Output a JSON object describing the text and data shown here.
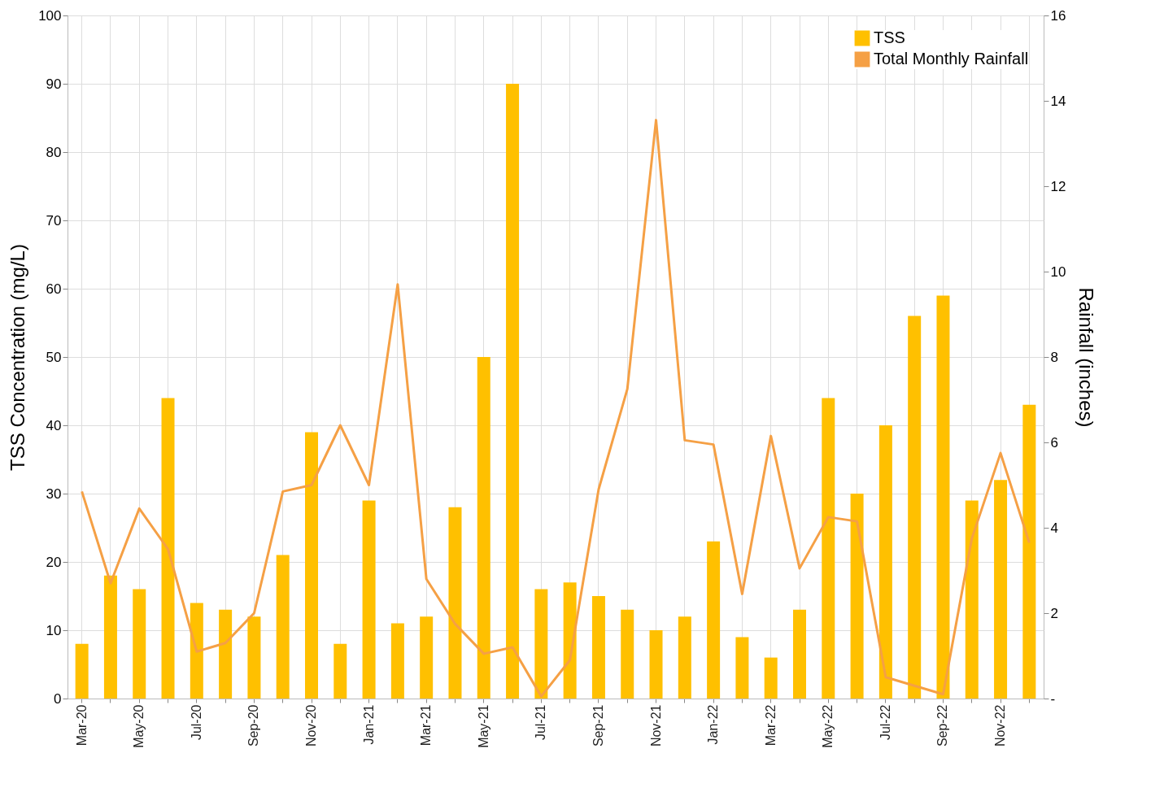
{
  "chart_data": {
    "type": "bar",
    "ylabel": "TSS Concentration   (mg/L)",
    "y2label": "Rainfall (inches)",
    "categories": [
      "Mar-20",
      null,
      "May-20",
      null,
      "Jul-20",
      null,
      "Sep-20",
      null,
      "Nov-20",
      null,
      "Jan-21",
      null,
      "Mar-21",
      null,
      "May-21",
      null,
      "Jul-21",
      null,
      "Sep-21",
      null,
      "Nov-21",
      null,
      "Jan-22",
      null,
      "Mar-22",
      null,
      "May-22",
      null,
      "Jul-22",
      null,
      "Sep-22",
      null,
      "Nov-22",
      null
    ],
    "series": [
      {
        "name": "TSS",
        "color": "#ffc000",
        "values": [
          8,
          18,
          16,
          44,
          14,
          13,
          12,
          21,
          39,
          8,
          29,
          11,
          12,
          28,
          50,
          90,
          16,
          17,
          15,
          13,
          10,
          12,
          23,
          9,
          6,
          13,
          44,
          30,
          40,
          56,
          59,
          29,
          32,
          43
        ]
      },
      {
        "name": "Total Monthly Rainfall",
        "type": "line",
        "axis": "y2",
        "color": "#f5a045",
        "values": [
          4.85,
          2.7,
          4.45,
          3.5,
          1.1,
          1.3,
          2.0,
          4.85,
          5.0,
          6.4,
          5.0,
          9.7,
          2.8,
          1.75,
          1.05,
          1.2,
          0.05,
          0.9,
          4.9,
          7.25,
          13.55,
          6.05,
          5.95,
          2.45,
          6.15,
          3.05,
          4.25,
          4.15,
          0.5,
          0.3,
          0.1,
          3.75,
          5.75,
          3.65
        ]
      }
    ],
    "ylim": [
      0,
      100
    ],
    "yticks": [
      0,
      10,
      20,
      30,
      40,
      50,
      60,
      70,
      80,
      90,
      100
    ],
    "y2lim": [
      0,
      16
    ],
    "y2ticks": [
      {
        "value": 0,
        "label": "-"
      },
      2,
      4,
      6,
      8,
      10,
      12,
      14,
      16
    ],
    "grid": true,
    "legend": "top right",
    "marker": "none",
    "line_style": "solid"
  }
}
